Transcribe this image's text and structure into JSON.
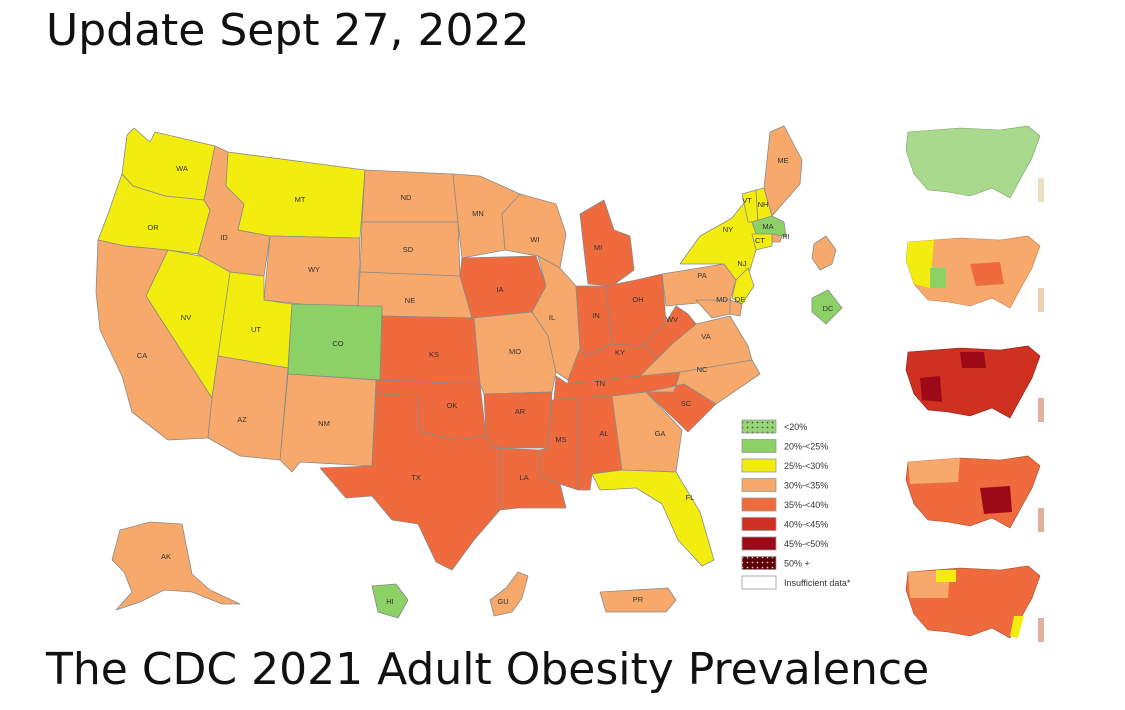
{
  "header": {
    "title": "Update Sept 27, 2022"
  },
  "footer": {
    "title": "The CDC 2021 Adult Obesity Prevalence"
  },
  "colors": {
    "lt20": "#9bd37a",
    "c20_25": "#8cd165",
    "c25_30": "#f2ec0f",
    "c30_35": "#f6a96a",
    "c35_40": "#ef6a3c",
    "c40_45": "#d0301f",
    "c45_50": "#9c0a17",
    "c50p": "#5c0008",
    "insufficient": "#ffffff",
    "border": "#8a8a8a"
  },
  "legend": {
    "items": [
      {
        "label": "<20%",
        "color_key": "lt20",
        "pattern": "dots"
      },
      {
        "label": "20%-<25%",
        "color_key": "c20_25"
      },
      {
        "label": "25%-<30%",
        "color_key": "c25_30"
      },
      {
        "label": "30%-<35%",
        "color_key": "c30_35"
      },
      {
        "label": "35%-<40%",
        "color_key": "c35_40"
      },
      {
        "label": "40%-<45%",
        "color_key": "c40_45"
      },
      {
        "label": "45%-<50%",
        "color_key": "c45_50"
      },
      {
        "label": "50% +",
        "color_key": "c50p",
        "pattern": "dots"
      },
      {
        "label": "Insufficient data*",
        "color_key": "insufficient"
      }
    ]
  },
  "states": [
    {
      "abbr": "WA",
      "bin": "c25_30"
    },
    {
      "abbr": "OR",
      "bin": "c25_30"
    },
    {
      "abbr": "CA",
      "bin": "c30_35"
    },
    {
      "abbr": "NV",
      "bin": "c25_30"
    },
    {
      "abbr": "ID",
      "bin": "c30_35"
    },
    {
      "abbr": "MT",
      "bin": "c25_30"
    },
    {
      "abbr": "WY",
      "bin": "c30_35"
    },
    {
      "abbr": "UT",
      "bin": "c25_30"
    },
    {
      "abbr": "CO",
      "bin": "c20_25"
    },
    {
      "abbr": "AZ",
      "bin": "c30_35"
    },
    {
      "abbr": "NM",
      "bin": "c30_35"
    },
    {
      "abbr": "ND",
      "bin": "c30_35"
    },
    {
      "abbr": "SD",
      "bin": "c30_35"
    },
    {
      "abbr": "NE",
      "bin": "c30_35"
    },
    {
      "abbr": "KS",
      "bin": "c35_40"
    },
    {
      "abbr": "OK",
      "bin": "c35_40"
    },
    {
      "abbr": "TX",
      "bin": "c35_40"
    },
    {
      "abbr": "MN",
      "bin": "c30_35"
    },
    {
      "abbr": "IA",
      "bin": "c35_40"
    },
    {
      "abbr": "MO",
      "bin": "c30_35"
    },
    {
      "abbr": "AR",
      "bin": "c35_40"
    },
    {
      "abbr": "LA",
      "bin": "c35_40"
    },
    {
      "abbr": "WI",
      "bin": "c30_35"
    },
    {
      "abbr": "IL",
      "bin": "c30_35"
    },
    {
      "abbr": "MI",
      "bin": "c35_40"
    },
    {
      "abbr": "IN",
      "bin": "c35_40"
    },
    {
      "abbr": "OH",
      "bin": "c35_40"
    },
    {
      "abbr": "KY",
      "bin": "c35_40"
    },
    {
      "abbr": "TN",
      "bin": "c35_40"
    },
    {
      "abbr": "MS",
      "bin": "c35_40"
    },
    {
      "abbr": "AL",
      "bin": "c35_40"
    },
    {
      "abbr": "GA",
      "bin": "c30_35"
    },
    {
      "abbr": "FL",
      "bin": "c25_30"
    },
    {
      "abbr": "SC",
      "bin": "c35_40"
    },
    {
      "abbr": "NC",
      "bin": "c30_35"
    },
    {
      "abbr": "VA",
      "bin": "c30_35"
    },
    {
      "abbr": "WV",
      "bin": "c35_40"
    },
    {
      "abbr": "PA",
      "bin": "c30_35"
    },
    {
      "abbr": "NY",
      "bin": "c25_30"
    },
    {
      "abbr": "VT",
      "bin": "c25_30"
    },
    {
      "abbr": "NH",
      "bin": "c25_30"
    },
    {
      "abbr": "ME",
      "bin": "c30_35"
    },
    {
      "abbr": "MA",
      "bin": "c20_25"
    },
    {
      "abbr": "RI",
      "bin": "c30_35"
    },
    {
      "abbr": "CT",
      "bin": "c25_30"
    },
    {
      "abbr": "NJ",
      "bin": "c25_30"
    },
    {
      "abbr": "DE",
      "bin": "c30_35"
    },
    {
      "abbr": "MD",
      "bin": "c30_35"
    },
    {
      "abbr": "DC",
      "bin": "c20_25"
    },
    {
      "abbr": "AK",
      "bin": "c30_35"
    },
    {
      "abbr": "HI",
      "bin": "c20_25"
    },
    {
      "abbr": "GU",
      "bin": "c30_35"
    },
    {
      "abbr": "PR",
      "bin": "c30_35"
    }
  ]
}
